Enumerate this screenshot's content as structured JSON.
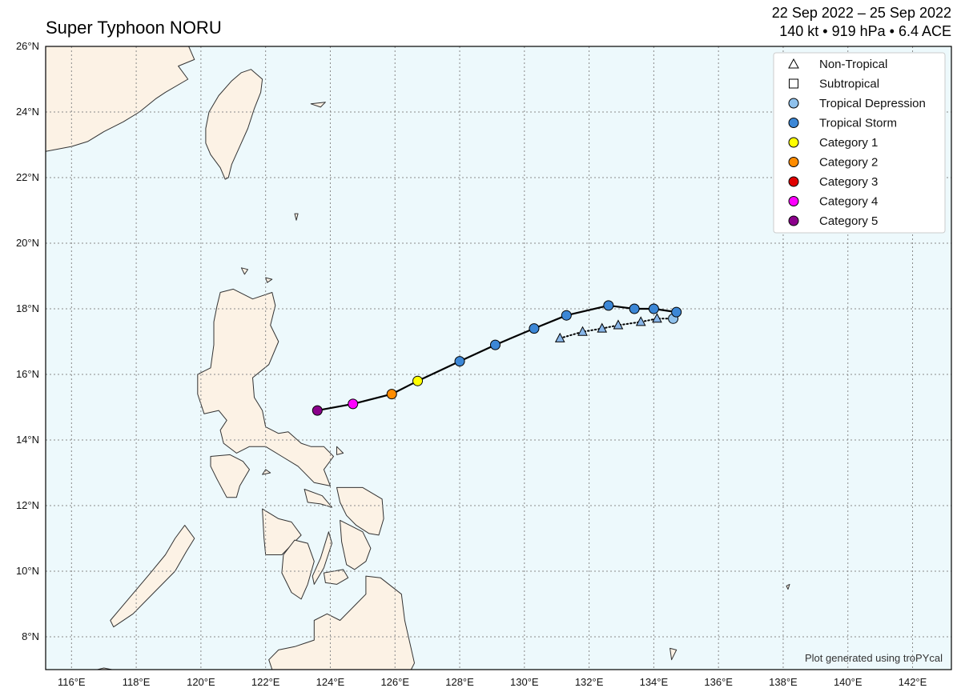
{
  "header": {
    "title": "Super Typhoon NORU",
    "date_range": "22 Sep 2022 – 25 Sep 2022",
    "stats": "140 kt • 919 hPa • 6.4 ACE"
  },
  "colors": {
    "ocean": "#edf9fc",
    "land": "#fcf2e5",
    "coast": "#333333",
    "grid": "#8a8a8a",
    "track": "#000000",
    "non_tropical": "#87b5e8",
    "subtropical": "#ffffff",
    "tropical_depression": "#8fc1ec",
    "tropical_storm": "#3c87d6",
    "category_1": "#ffff00",
    "category_2": "#ff8c00",
    "category_3": "#e00000",
    "category_4": "#ff00ff",
    "category_5": "#8b008b"
  },
  "map": {
    "lon_range": [
      115.2,
      143.2
    ],
    "lat_range": [
      7,
      26
    ],
    "lon_ticks": [
      116,
      118,
      120,
      122,
      124,
      126,
      128,
      130,
      132,
      134,
      136,
      138,
      140,
      142
    ],
    "lat_ticks": [
      8,
      10,
      12,
      14,
      16,
      18,
      20,
      22,
      24,
      26
    ],
    "lon_tick_labels": [
      "116°E",
      "118°E",
      "120°E",
      "122°E",
      "124°E",
      "126°E",
      "128°E",
      "130°E",
      "132°E",
      "134°E",
      "136°E",
      "138°E",
      "140°E",
      "142°E"
    ],
    "lat_tick_labels": [
      "8°N",
      "10°N",
      "12°N",
      "14°N",
      "16°N",
      "18°N",
      "20°N",
      "22°N",
      "24°N",
      "26°N"
    ],
    "grid": "dotted",
    "credit": "Plot generated using troPYcal"
  },
  "legend": {
    "placement": "top-right",
    "items": [
      {
        "label": "Non-Tropical",
        "symbol": "triangle",
        "color_key": "subtropical"
      },
      {
        "label": "Subtropical",
        "symbol": "square",
        "color_key": "subtropical"
      },
      {
        "label": "Tropical Depression",
        "symbol": "circle",
        "color_key": "tropical_depression"
      },
      {
        "label": "Tropical Storm",
        "symbol": "circle",
        "color_key": "tropical_storm"
      },
      {
        "label": "Category 1",
        "symbol": "circle",
        "color_key": "category_1"
      },
      {
        "label": "Category 2",
        "symbol": "circle",
        "color_key": "category_2"
      },
      {
        "label": "Category 3",
        "symbol": "circle",
        "color_key": "category_3"
      },
      {
        "label": "Category 4",
        "symbol": "circle",
        "color_key": "category_4"
      },
      {
        "label": "Category 5",
        "symbol": "circle",
        "color_key": "category_5"
      }
    ]
  },
  "track": {
    "non_tropical": [
      {
        "lon": 131.1,
        "lat": 17.1
      },
      {
        "lon": 131.8,
        "lat": 17.3
      },
      {
        "lon": 132.4,
        "lat": 17.4
      },
      {
        "lon": 132.9,
        "lat": 17.5
      },
      {
        "lon": 133.6,
        "lat": 17.6
      },
      {
        "lon": 134.1,
        "lat": 17.7
      }
    ],
    "tropical": [
      {
        "lon": 134.6,
        "lat": 17.7,
        "stage": "tropical_depression"
      },
      {
        "lon": 134.7,
        "lat": 17.9,
        "stage": "tropical_storm"
      },
      {
        "lon": 134.0,
        "lat": 18.0,
        "stage": "tropical_storm"
      },
      {
        "lon": 133.4,
        "lat": 18.0,
        "stage": "tropical_storm"
      },
      {
        "lon": 132.6,
        "lat": 18.1,
        "stage": "tropical_storm"
      },
      {
        "lon": 131.3,
        "lat": 17.8,
        "stage": "tropical_storm"
      },
      {
        "lon": 130.3,
        "lat": 17.4,
        "stage": "tropical_storm"
      },
      {
        "lon": 129.1,
        "lat": 16.9,
        "stage": "tropical_storm"
      },
      {
        "lon": 128.0,
        "lat": 16.4,
        "stage": "tropical_storm"
      },
      {
        "lon": 126.7,
        "lat": 15.8,
        "stage": "category_1"
      },
      {
        "lon": 125.9,
        "lat": 15.4,
        "stage": "category_2"
      },
      {
        "lon": 124.7,
        "lat": 15.1,
        "stage": "category_4"
      },
      {
        "lon": 123.6,
        "lat": 14.9,
        "stage": "category_5"
      }
    ]
  },
  "land": [
    {
      "name": "china-coast",
      "lonlat": [
        [
          115.2,
          26.05
        ],
        [
          119.6,
          26.05
        ],
        [
          119.8,
          25.6
        ],
        [
          119.3,
          25.4
        ],
        [
          119.6,
          25.0
        ],
        [
          118.9,
          24.6
        ],
        [
          118.6,
          24.4
        ],
        [
          118.1,
          24.0
        ],
        [
          117.6,
          23.7
        ],
        [
          117.0,
          23.4
        ],
        [
          116.5,
          23.1
        ],
        [
          116.0,
          22.95
        ],
        [
          115.2,
          22.8
        ]
      ]
    },
    {
      "name": "taiwan",
      "lonlat": [
        [
          121.55,
          25.3
        ],
        [
          121.9,
          25.0
        ],
        [
          121.85,
          24.6
        ],
        [
          121.65,
          24.1
        ],
        [
          121.45,
          23.5
        ],
        [
          121.2,
          22.95
        ],
        [
          120.95,
          22.4
        ],
        [
          120.85,
          22.0
        ],
        [
          120.75,
          21.95
        ],
        [
          120.6,
          22.3
        ],
        [
          120.3,
          22.7
        ],
        [
          120.15,
          23.05
        ],
        [
          120.15,
          23.5
        ],
        [
          120.25,
          24.0
        ],
        [
          120.55,
          24.5
        ],
        [
          120.95,
          24.95
        ],
        [
          121.25,
          25.2
        ]
      ]
    },
    {
      "name": "luzon",
      "lonlat": [
        [
          120.6,
          18.5
        ],
        [
          121.0,
          18.6
        ],
        [
          121.6,
          18.3
        ],
        [
          122.2,
          18.5
        ],
        [
          122.3,
          18.1
        ],
        [
          122.15,
          17.5
        ],
        [
          122.4,
          17.0
        ],
        [
          122.1,
          16.3
        ],
        [
          121.6,
          15.9
        ],
        [
          121.65,
          15.3
        ],
        [
          121.9,
          14.9
        ],
        [
          122.0,
          14.4
        ],
        [
          122.4,
          14.2
        ],
        [
          122.7,
          14.25
        ],
        [
          123.1,
          13.9
        ],
        [
          123.4,
          13.8
        ],
        [
          123.8,
          13.8
        ],
        [
          124.1,
          13.5
        ],
        [
          123.8,
          13.1
        ],
        [
          124.0,
          12.6
        ],
        [
          123.5,
          12.7
        ],
        [
          123.0,
          13.2
        ],
        [
          122.5,
          13.5
        ],
        [
          122.0,
          13.8
        ],
        [
          121.5,
          13.8
        ],
        [
          121.1,
          13.6
        ],
        [
          120.7,
          13.9
        ],
        [
          120.6,
          14.3
        ],
        [
          120.8,
          14.6
        ],
        [
          120.55,
          14.9
        ],
        [
          120.1,
          14.8
        ],
        [
          119.9,
          15.4
        ],
        [
          119.9,
          16.0
        ],
        [
          120.3,
          16.2
        ],
        [
          120.4,
          16.9
        ],
        [
          120.4,
          17.6
        ],
        [
          120.5,
          18.1
        ]
      ]
    },
    {
      "name": "mindoro",
      "lonlat": [
        [
          120.3,
          13.5
        ],
        [
          120.9,
          13.55
        ],
        [
          121.3,
          13.35
        ],
        [
          121.5,
          13.1
        ],
        [
          121.2,
          12.6
        ],
        [
          121.1,
          12.25
        ],
        [
          120.8,
          12.25
        ],
        [
          120.5,
          12.8
        ],
        [
          120.3,
          13.2
        ]
      ]
    },
    {
      "name": "panay",
      "lonlat": [
        [
          121.9,
          11.9
        ],
        [
          122.4,
          11.6
        ],
        [
          122.8,
          11.5
        ],
        [
          123.1,
          11.1
        ],
        [
          122.9,
          10.9
        ],
        [
          122.5,
          10.5
        ],
        [
          122.0,
          10.5
        ],
        [
          121.95,
          11.0
        ]
      ]
    },
    {
      "name": "negros",
      "lonlat": [
        [
          122.9,
          10.95
        ],
        [
          123.3,
          10.85
        ],
        [
          123.5,
          10.3
        ],
        [
          123.3,
          9.6
        ],
        [
          123.1,
          9.15
        ],
        [
          122.8,
          9.35
        ],
        [
          122.5,
          9.95
        ],
        [
          122.55,
          10.5
        ]
      ]
    },
    {
      "name": "cebu",
      "lonlat": [
        [
          123.95,
          11.2
        ],
        [
          124.05,
          10.85
        ],
        [
          123.8,
          10.1
        ],
        [
          123.5,
          9.6
        ],
        [
          123.45,
          9.85
        ],
        [
          123.7,
          10.4
        ]
      ]
    },
    {
      "name": "bohol",
      "lonlat": [
        [
          123.8,
          9.95
        ],
        [
          124.4,
          10.05
        ],
        [
          124.55,
          9.8
        ],
        [
          124.2,
          9.6
        ],
        [
          123.85,
          9.65
        ]
      ]
    },
    {
      "name": "samar",
      "lonlat": [
        [
          124.2,
          12.55
        ],
        [
          125.0,
          12.55
        ],
        [
          125.6,
          12.2
        ],
        [
          125.65,
          11.6
        ],
        [
          125.5,
          11.1
        ],
        [
          125.2,
          11.15
        ],
        [
          124.8,
          11.4
        ],
        [
          124.5,
          11.7
        ],
        [
          124.3,
          12.1
        ]
      ]
    },
    {
      "name": "leyte",
      "lonlat": [
        [
          124.3,
          11.55
        ],
        [
          124.6,
          11.4
        ],
        [
          125.0,
          11.2
        ],
        [
          125.25,
          10.7
        ],
        [
          125.1,
          10.3
        ],
        [
          124.75,
          10.05
        ],
        [
          124.5,
          10.2
        ],
        [
          124.35,
          10.9
        ]
      ]
    },
    {
      "name": "masbate",
      "lonlat": [
        [
          123.2,
          12.5
        ],
        [
          123.75,
          12.3
        ],
        [
          124.05,
          11.95
        ],
        [
          123.7,
          12.05
        ],
        [
          123.3,
          12.1
        ]
      ]
    },
    {
      "name": "mindanao",
      "lonlat": [
        [
          125.1,
          9.85
        ],
        [
          125.55,
          9.8
        ],
        [
          126.2,
          9.3
        ],
        [
          126.3,
          8.5
        ],
        [
          126.6,
          7.2
        ],
        [
          126.5,
          7.0
        ],
        [
          122.2,
          7.0
        ],
        [
          122.1,
          7.3
        ],
        [
          122.4,
          7.6
        ],
        [
          122.9,
          7.7
        ],
        [
          123.5,
          7.9
        ],
        [
          123.5,
          8.5
        ],
        [
          123.9,
          8.7
        ],
        [
          124.3,
          8.5
        ],
        [
          124.8,
          9.0
        ],
        [
          125.1,
          9.3
        ]
      ]
    },
    {
      "name": "palawan",
      "lonlat": [
        [
          119.5,
          11.4
        ],
        [
          119.8,
          11.0
        ],
        [
          119.55,
          10.6
        ],
        [
          119.2,
          10.0
        ],
        [
          118.6,
          9.4
        ],
        [
          117.9,
          8.7
        ],
        [
          117.3,
          8.3
        ],
        [
          117.2,
          8.5
        ],
        [
          117.8,
          9.2
        ],
        [
          118.4,
          9.9
        ],
        [
          118.9,
          10.5
        ],
        [
          119.2,
          11.0
        ]
      ]
    },
    {
      "name": "borneo-tip",
      "lonlat": [
        [
          116.8,
          7.0
        ],
        [
          117.0,
          7.05
        ],
        [
          117.25,
          7.0
        ]
      ]
    },
    {
      "name": "islet-1",
      "lonlat": [
        [
          122.9,
          20.9
        ],
        [
          123.0,
          20.9
        ],
        [
          122.95,
          20.7
        ]
      ]
    },
    {
      "name": "islet-2",
      "lonlat": [
        [
          121.25,
          19.25
        ],
        [
          121.45,
          19.2
        ],
        [
          121.35,
          19.05
        ]
      ]
    },
    {
      "name": "islet-3",
      "lonlat": [
        [
          122.0,
          18.95
        ],
        [
          122.2,
          18.9
        ],
        [
          122.05,
          18.8
        ]
      ]
    },
    {
      "name": "islet-4",
      "lonlat": [
        [
          123.4,
          24.25
        ],
        [
          123.85,
          24.3
        ],
        [
          123.7,
          24.15
        ]
      ]
    },
    {
      "name": "islet-5",
      "lonlat": [
        [
          122.0,
          13.1
        ],
        [
          122.15,
          13.0
        ],
        [
          121.9,
          12.95
        ]
      ]
    },
    {
      "name": "islet-6",
      "lonlat": [
        [
          124.2,
          13.8
        ],
        [
          124.4,
          13.6
        ],
        [
          124.2,
          13.55
        ]
      ]
    },
    {
      "name": "islet-7",
      "lonlat": [
        [
          138.1,
          9.55
        ],
        [
          138.2,
          9.6
        ],
        [
          138.15,
          9.45
        ]
      ]
    },
    {
      "name": "islet-8",
      "lonlat": [
        [
          134.5,
          7.65
        ],
        [
          134.7,
          7.6
        ],
        [
          134.55,
          7.3
        ]
      ]
    }
  ]
}
